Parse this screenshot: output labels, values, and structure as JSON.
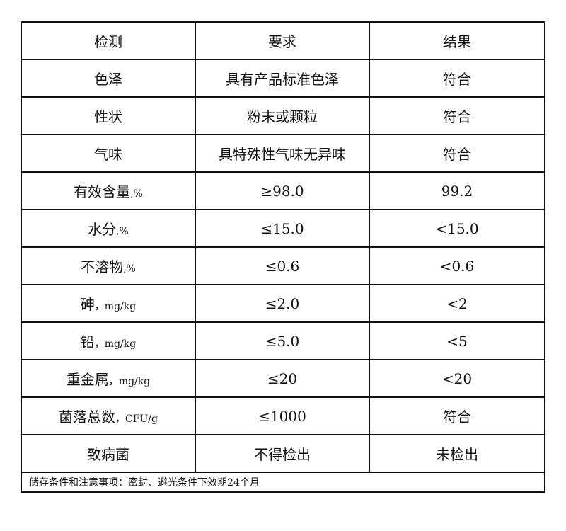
{
  "table": {
    "headers": [
      "检测",
      "要求",
      "结果"
    ],
    "rows": [
      {
        "item": "色泽",
        "unit": "",
        "requirement": "具有产品标准色泽",
        "result": "符合"
      },
      {
        "item": "性状",
        "unit": "",
        "requirement": "粉末或颗粒",
        "result": "符合"
      },
      {
        "item": "气味",
        "unit": "",
        "requirement": "具特殊性气味无异味",
        "result": "符合"
      },
      {
        "item": "有效含量",
        "unit": ",%",
        "requirement": "≥98.0",
        "result": "99.2"
      },
      {
        "item": "水分",
        "unit": ",%",
        "requirement": "≤15.0",
        "result": "<15.0"
      },
      {
        "item": "不溶物",
        "unit": ",%",
        "requirement": "≤0.6",
        "result": "<0.6"
      },
      {
        "item": "砷",
        "unit": "，mg/kg",
        "requirement": "≤2.0",
        "result": "<2"
      },
      {
        "item": "铅",
        "unit": "，mg/kg",
        "requirement": "≤5.0",
        "result": "<5"
      },
      {
        "item": "重金属",
        "unit": "，mg/kg",
        "requirement": "≤20",
        "result": "<20"
      },
      {
        "item": "菌落总数",
        "unit": "，CFU/g",
        "requirement": "≤1000",
        "result": "符合"
      },
      {
        "item": "致病菌",
        "unit": "",
        "requirement": "不得检出",
        "result": "未检出"
      }
    ],
    "footer": "储存条件和注意事项：密封、避光条件下效期24个月"
  }
}
